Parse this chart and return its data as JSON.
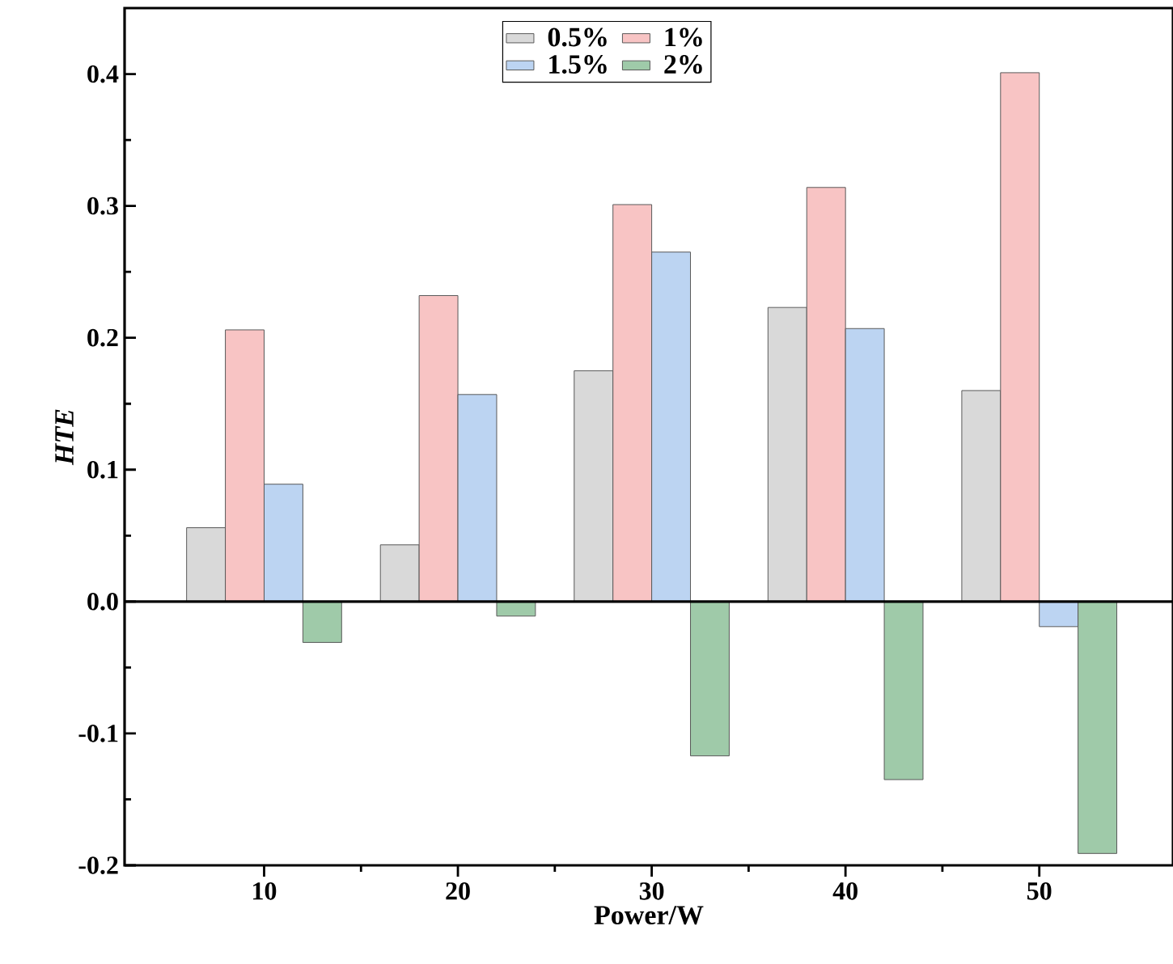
{
  "chart_data": {
    "type": "bar",
    "xlabel": "Power/W",
    "ylabel": "*HTE*",
    "x": [
      10,
      20,
      30,
      40,
      50
    ],
    "series": [
      {
        "name": "0.5%",
        "color": "#d9d9d9",
        "values": [
          0.056,
          0.043,
          0.175,
          0.223,
          0.16
        ]
      },
      {
        "name": "1%",
        "color": "#f8c4c4",
        "values": [
          0.206,
          0.232,
          0.301,
          0.314,
          0.401
        ]
      },
      {
        "name": "1.5%",
        "color": "#bcd4f2",
        "values": [
          0.089,
          0.157,
          0.265,
          0.207,
          -0.019
        ]
      },
      {
        "name": "2%",
        "color": "#9fcaa9",
        "values": [
          -0.031,
          -0.011,
          -0.117,
          -0.135,
          -0.191
        ]
      }
    ],
    "xlim": [
      2.8,
      56.9
    ],
    "xticks": [
      10,
      20,
      30,
      40,
      50
    ],
    "ylim": [
      -0.2,
      0.45
    ],
    "yticks": [
      {
        "value": -0.2,
        "label": "-0.2"
      },
      {
        "value": -0.1,
        "label": "-0.1"
      },
      {
        "value": 0,
        "label": "0.0"
      },
      0.1,
      0.2,
      0.3,
      0.4
    ],
    "ref_lines": [
      {
        "axis": "y",
        "value": 0
      }
    ],
    "legend": "top",
    "grid": false
  }
}
